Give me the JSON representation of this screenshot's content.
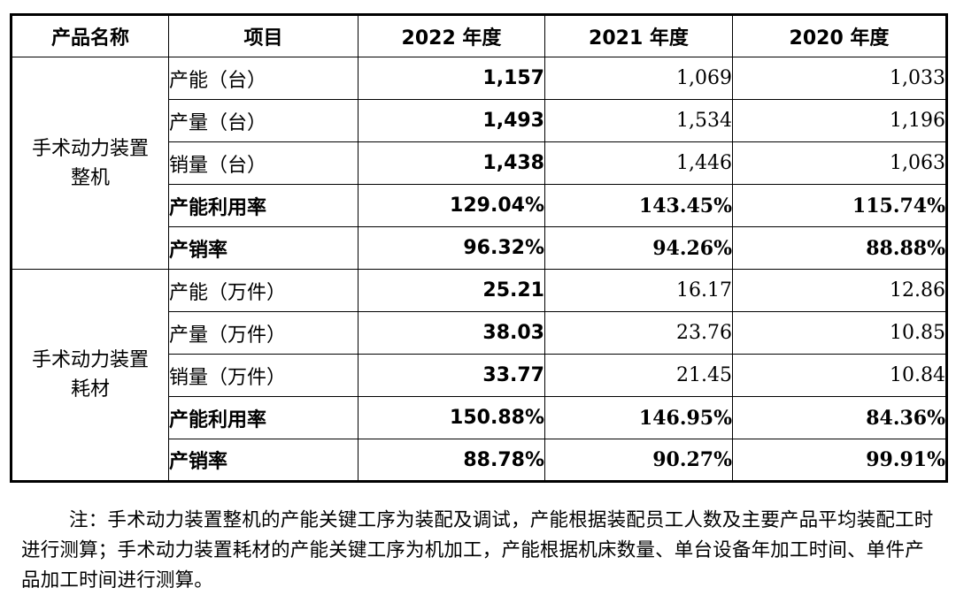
{
  "headers": [
    "产品名称",
    "项目",
    "2022 年度",
    "2021 年度",
    "2020 年度"
  ],
  "groups": [
    {
      "product": "手术动力装置整机",
      "rows": [
        {
          "item": "产能（台）",
          "v2022": "1,157",
          "v2021": "1,069",
          "v2020": "1,033",
          "bold": false
        },
        {
          "item": "产量（台）",
          "v2022": "1,493",
          "v2021": "1,534",
          "v2020": "1,196",
          "bold": false
        },
        {
          "item": "销量（台）",
          "v2022": "1,438",
          "v2021": "1,446",
          "v2020": "1,063",
          "bold": false
        },
        {
          "item": "产能利用率",
          "v2022": "129.04%",
          "v2021": "143.45%",
          "v2020": "115.74%",
          "bold": true
        },
        {
          "item": "产销率",
          "v2022": "96.32%",
          "v2021": "94.26%",
          "v2020": "88.88%",
          "bold": true
        }
      ]
    },
    {
      "product": "手术动力装置耗材",
      "rows": [
        {
          "item": "产能（万件）",
          "v2022": "25.21",
          "v2021": "16.17",
          "v2020": "12.86",
          "bold": false
        },
        {
          "item": "产量（万件）",
          "v2022": "38.03",
          "v2021": "23.76",
          "v2020": "10.85",
          "bold": false
        },
        {
          "item": "销量（万件）",
          "v2022": "33.77",
          "v2021": "21.45",
          "v2020": "10.84",
          "bold": false
        },
        {
          "item": "产能利用率",
          "v2022": "150.88%",
          "v2021": "146.95%",
          "v2020": "84.36%",
          "bold": true
        },
        {
          "item": "产销率",
          "v2022": "88.78%",
          "v2021": "90.27%",
          "v2020": "99.91%",
          "bold": true
        }
      ]
    }
  ],
  "note": "注：手术动力装置整机的产能关键工序为装配及调试，产能根据装配员工人数及主要产品平均装配工时进行测算；手术动力装置耗材的产能关键工序为机加工，产能根据机床数量、单台设备年加工时间、单件产品加工时间进行测算。"
}
